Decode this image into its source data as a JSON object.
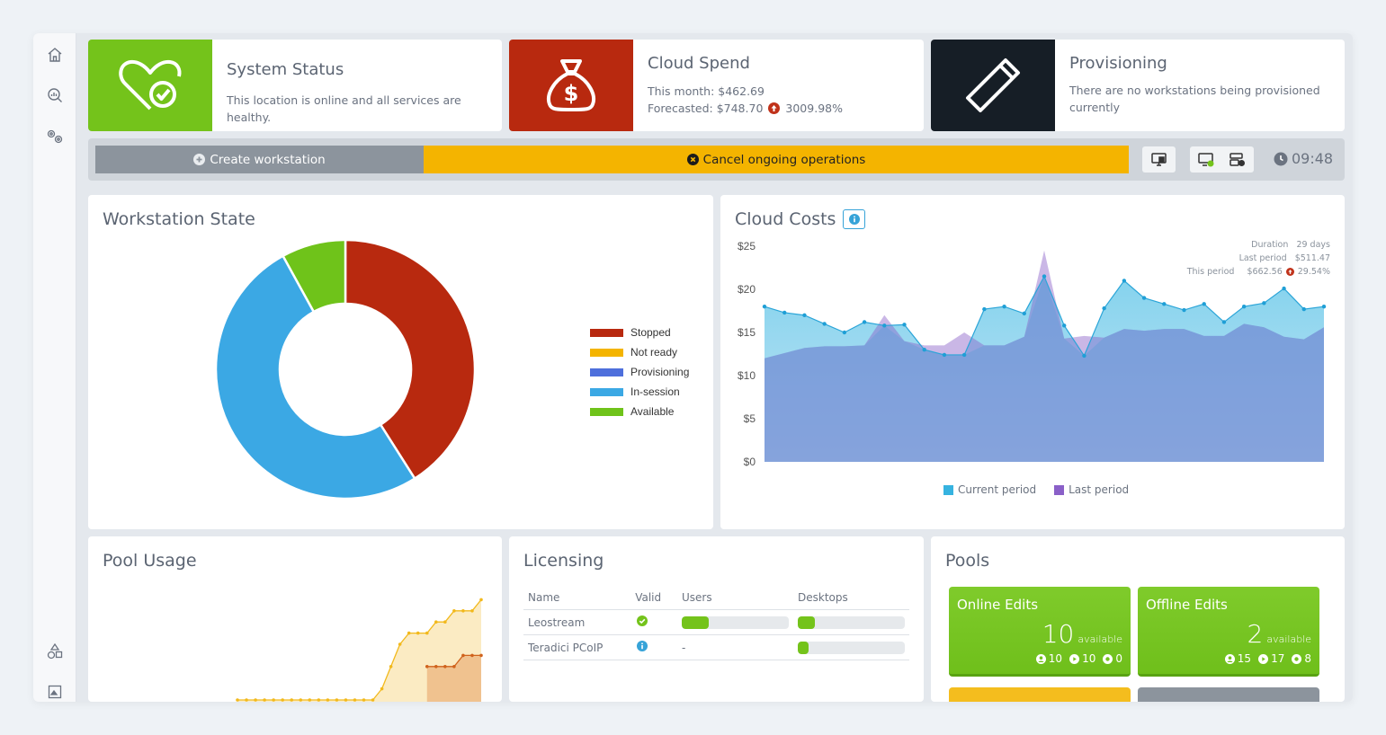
{
  "status_cards": [
    {
      "title": "System Status",
      "lines": [
        "This location is online and all services are healthy."
      ],
      "color": "#74c31b",
      "icon": "heart-check-icon"
    },
    {
      "title": "Cloud Spend",
      "lines": [
        "This month: $462.69",
        "Forecasted: $748.70"
      ],
      "change": "3009.98%",
      "color": "#b8290f",
      "icon": "money-bag-icon"
    },
    {
      "title": "Provisioning",
      "lines": [
        "There are no workstations being provisioned currently"
      ],
      "color": "#161e26",
      "icon": "pen-icon"
    }
  ],
  "actions": {
    "create_label": "Create workstation",
    "cancel_label": "Cancel ongoing operations",
    "clock": "09:48"
  },
  "workstation_state": {
    "title": "Workstation State",
    "legend": [
      {
        "label": "Stopped",
        "color": "#b8290f"
      },
      {
        "label": "Not ready",
        "color": "#f4b400"
      },
      {
        "label": "Provisioning",
        "color": "#4e6fdc"
      },
      {
        "label": "In-session",
        "color": "#3ba8e4"
      },
      {
        "label": "Available",
        "color": "#6fc31a"
      }
    ]
  },
  "chart_data": {
    "type": "pie",
    "categories": [
      "Stopped",
      "Not ready",
      "Provisioning",
      "In-session",
      "Available"
    ],
    "values": [
      41,
      0,
      0,
      51,
      8
    ]
  },
  "cloud_costs": {
    "title": "Cloud Costs",
    "y_ticks": [
      "$25",
      "$20",
      "$15",
      "$10",
      "$5",
      "$0"
    ],
    "ylim": [
      0,
      25
    ],
    "summary": {
      "duration_label": "Duration",
      "duration_value": "29 days",
      "last_label": "Last period",
      "last_value": "$511.47",
      "this_label": "This period",
      "this_value": "$662.56",
      "this_change": "29.54%"
    },
    "legend": [
      {
        "label": "Current period",
        "color": "#36b3e0"
      },
      {
        "label": "Last period",
        "color": "#8a60c8"
      }
    ],
    "current_period": [
      18,
      17.3,
      17,
      16,
      15,
      16.2,
      15.8,
      15.9,
      13,
      12.4,
      12.4,
      17.7,
      18,
      17.2,
      21.5,
      15.8,
      12.3,
      17.8,
      21,
      19,
      18.3,
      17.6,
      18.3,
      16.2,
      18,
      18.4,
      20.1,
      17.7,
      18
    ],
    "last_period": [
      12,
      12.6,
      13.2,
      13.4,
      13.4,
      13.5,
      17,
      14,
      13.5,
      13.5,
      15,
      13.5,
      13.5,
      14.5,
      24.5,
      14.3,
      14.6,
      14.4,
      15.4,
      15.2,
      15.4,
      15.4,
      14.6,
      14.6,
      16,
      15.6,
      14.5,
      14.2,
      15.6
    ]
  },
  "pool_usage": {
    "title": "Pool Usage",
    "series_a": [
      0,
      0,
      0,
      0,
      0,
      0,
      0,
      0,
      0,
      0,
      0,
      0,
      0,
      0,
      0,
      0,
      1,
      3,
      5,
      6,
      6,
      6,
      7,
      7,
      8,
      8,
      8,
      9
    ],
    "series_b": [
      0,
      0,
      0,
      0,
      0,
      0,
      0,
      0,
      0,
      0,
      0,
      0,
      0,
      0,
      0,
      0,
      0,
      0,
      0,
      0,
      0,
      3,
      3,
      3,
      3,
      4,
      4,
      4
    ],
    "ymax": 10
  },
  "licensing": {
    "title": "Licensing",
    "headers": [
      "Name",
      "Valid",
      "Users",
      "Desktops"
    ],
    "rows": [
      {
        "name": "Leostream",
        "valid": "check",
        "users": 0.25,
        "users_text": "",
        "desktops": 0.16
      },
      {
        "name": "Teradici PCoIP",
        "valid": "info",
        "users": null,
        "users_text": "-",
        "desktops": 0.1
      }
    ]
  },
  "pools": {
    "title": "Pools",
    "items": [
      {
        "name": "Online Edits",
        "available": "10",
        "available_label": "available",
        "stats": [
          "10",
          "10",
          "0"
        ]
      },
      {
        "name": "Offline Edits",
        "available": "2",
        "available_label": "available",
        "stats": [
          "15",
          "17",
          "8"
        ]
      }
    ]
  }
}
